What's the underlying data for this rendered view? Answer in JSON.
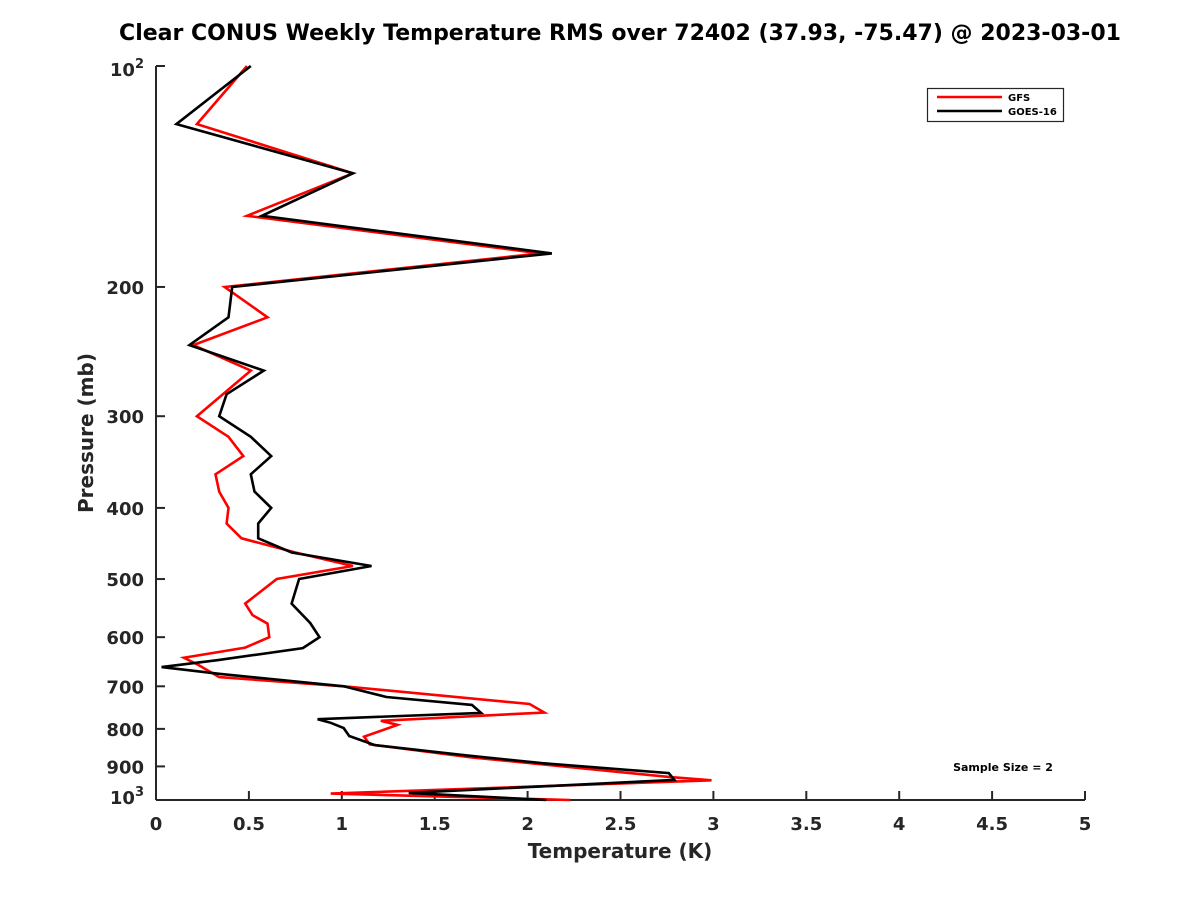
{
  "chart_data": {
    "type": "line",
    "title": "Clear CONUS Weekly Temperature RMS over 72402 (37.93, -75.47) @ 2023-03-01",
    "xlabel": "Temperature (K)",
    "ylabel": "Pressure (mb)",
    "xlim": [
      0,
      5
    ],
    "ylim": [
      100,
      1000
    ],
    "yscale": "log",
    "y_reversed": true,
    "grid": false,
    "xticks": [
      "0",
      "0.5",
      "1",
      "1.5",
      "2",
      "2.5",
      "3",
      "3.5",
      "4",
      "4.5",
      "5"
    ],
    "xtick_values": [
      0,
      0.5,
      1,
      1.5,
      2,
      2.5,
      3,
      3.5,
      4,
      4.5,
      5
    ],
    "yticks": [
      {
        "value": 100,
        "base": "10",
        "exp": "2"
      },
      {
        "value": 200,
        "label": "200"
      },
      {
        "value": 300,
        "label": "300"
      },
      {
        "value": 400,
        "label": "400"
      },
      {
        "value": 500,
        "label": "500"
      },
      {
        "value": 600,
        "label": "600"
      },
      {
        "value": 700,
        "label": "700"
      },
      {
        "value": 800,
        "label": "800"
      },
      {
        "value": 900,
        "label": "900"
      },
      {
        "value": 1000,
        "base": "10",
        "exp": "3"
      }
    ],
    "legend": {
      "placement": "top-right"
    },
    "annotation": "Sample Size = 2",
    "series": [
      {
        "name": "GFS",
        "color": "#ff0000",
        "points": [
          [
            0.49,
            100
          ],
          [
            0.22,
            120
          ],
          [
            1.06,
            140
          ],
          [
            0.49,
            160
          ],
          [
            2.07,
            180
          ],
          [
            0.37,
            200
          ],
          [
            0.6,
            220
          ],
          [
            0.2,
            240
          ],
          [
            0.51,
            260
          ],
          [
            0.36,
            280
          ],
          [
            0.22,
            300
          ],
          [
            0.39,
            320
          ],
          [
            0.47,
            340
          ],
          [
            0.32,
            360
          ],
          [
            0.34,
            380
          ],
          [
            0.39,
            400
          ],
          [
            0.38,
            420
          ],
          [
            0.46,
            440
          ],
          [
            0.75,
            460
          ],
          [
            1.06,
            480
          ],
          [
            0.65,
            500
          ],
          [
            0.48,
            540
          ],
          [
            0.52,
            560
          ],
          [
            0.6,
            575
          ],
          [
            0.61,
            600
          ],
          [
            0.48,
            620
          ],
          [
            0.15,
            640
          ],
          [
            0.23,
            655
          ],
          [
            0.34,
            680
          ],
          [
            1.01,
            700
          ],
          [
            2.01,
            740
          ],
          [
            2.09,
            760
          ],
          [
            1.21,
            780
          ],
          [
            1.3,
            790
          ],
          [
            1.12,
            820
          ],
          [
            1.15,
            840
          ],
          [
            1.7,
            875
          ],
          [
            2.76,
            930
          ],
          [
            2.99,
            940
          ],
          [
            0.94,
            980
          ],
          [
            2.23,
            1000
          ]
        ]
      },
      {
        "name": "GOES-16",
        "color": "#000000",
        "points": [
          [
            0.51,
            100
          ],
          [
            0.11,
            120
          ],
          [
            1.06,
            140
          ],
          [
            0.57,
            160
          ],
          [
            2.13,
            180
          ],
          [
            0.41,
            200
          ],
          [
            0.39,
            220
          ],
          [
            0.18,
            240
          ],
          [
            0.58,
            260
          ],
          [
            0.38,
            280
          ],
          [
            0.34,
            300
          ],
          [
            0.51,
            320
          ],
          [
            0.62,
            340
          ],
          [
            0.51,
            360
          ],
          [
            0.53,
            380
          ],
          [
            0.62,
            400
          ],
          [
            0.55,
            420
          ],
          [
            0.55,
            440
          ],
          [
            0.73,
            460
          ],
          [
            1.16,
            480
          ],
          [
            0.77,
            500
          ],
          [
            0.73,
            540
          ],
          [
            0.83,
            574
          ],
          [
            0.88,
            600
          ],
          [
            0.79,
            621
          ],
          [
            0.33,
            645
          ],
          [
            0.03,
            659
          ],
          [
            0.34,
            673
          ],
          [
            1.01,
            700
          ],
          [
            1.24,
            724
          ],
          [
            1.7,
            742
          ],
          [
            1.75,
            761
          ],
          [
            0.87,
            776
          ],
          [
            0.94,
            785
          ],
          [
            1.01,
            798
          ],
          [
            1.04,
            818
          ],
          [
            1.18,
            842
          ],
          [
            1.66,
            869
          ],
          [
            2.08,
            891
          ],
          [
            2.76,
            919
          ],
          [
            2.79,
            939
          ],
          [
            1.36,
            978
          ],
          [
            2.1,
            1000
          ]
        ]
      }
    ]
  }
}
